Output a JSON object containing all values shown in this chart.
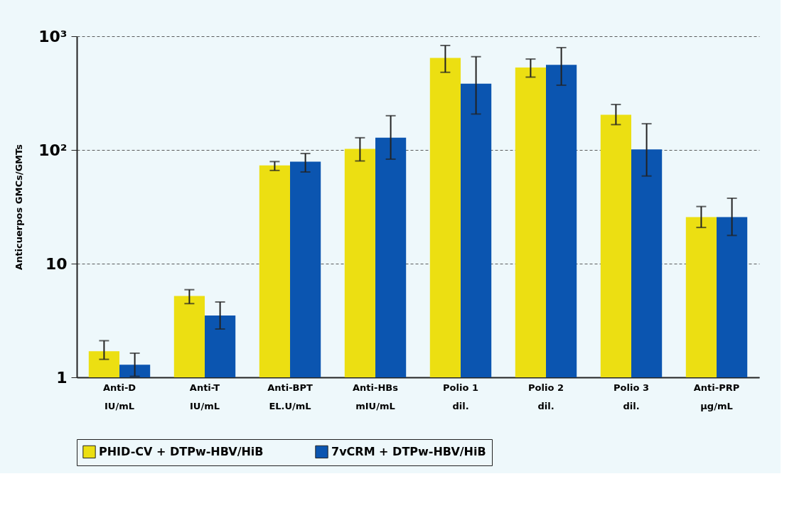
{
  "chart_data": {
    "type": "bar",
    "ylabel": "Anticuerpos GMCs/GMTs",
    "categories": [
      "Anti-D\nIU/mL",
      "Anti-T\nIU/mL",
      "Anti-BPT\nEL.U/mL",
      "Anti-HBs\nmIU/mL",
      "Polio 1\ndil.",
      "Polio 2\ndil.",
      "Polio 3\ndil.",
      "Anti-PRP\nµg/mL"
    ],
    "series": [
      {
        "name": "PHID-CV + DTPw-HBV/HiB",
        "color": "#ecdf12",
        "values": [
          1.7,
          5.2,
          73,
          102,
          645,
          530,
          204,
          25.7
        ],
        "errors": [
          [
            1.44,
            2.1
          ],
          [
            4.45,
            5.9
          ],
          [
            66,
            79
          ],
          [
            80,
            128
          ],
          [
            481,
            828
          ],
          [
            437,
            630
          ],
          [
            167,
            251
          ],
          [
            20.8,
            31.8
          ]
        ]
      },
      {
        "name": "7vCRM + DTPw-HBV/HiB",
        "color": "#0b55b0",
        "values": [
          1.29,
          3.5,
          79,
          128,
          382,
          561,
          101,
          25.7
        ],
        "errors": [
          [
            1.02,
            1.63
          ],
          [
            2.66,
            4.6
          ],
          [
            64,
            93
          ],
          [
            83,
            200
          ],
          [
            207,
            661
          ],
          [
            371,
            794
          ],
          [
            59,
            170
          ],
          [
            17.7,
            37.6
          ]
        ]
      }
    ],
    "log": "y",
    "ylim": [
      1,
      1000
    ],
    "yticks": [
      1,
      10,
      {
        "value": 100,
        "label": "10²"
      },
      {
        "value": 1000,
        "label": "10³"
      }
    ],
    "grid": "y",
    "legend": "bottom"
  }
}
